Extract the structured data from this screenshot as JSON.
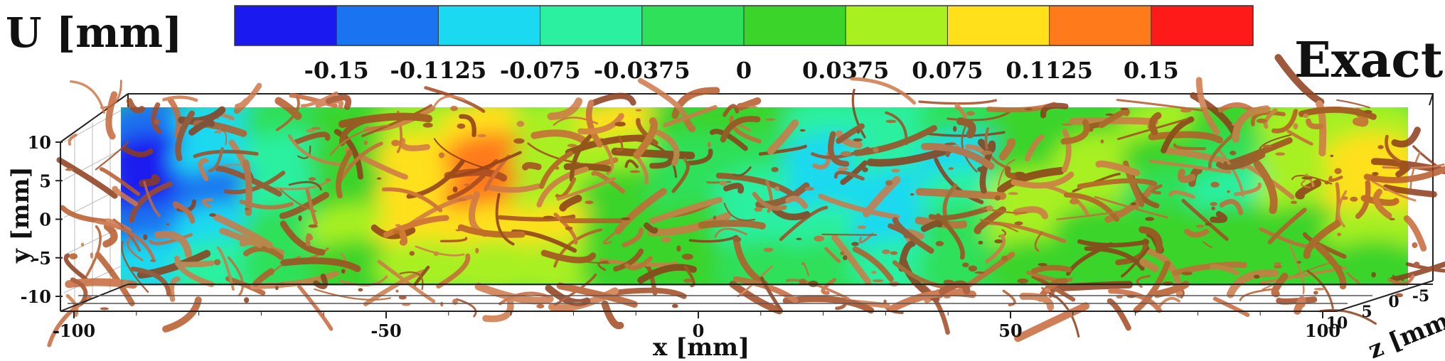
{
  "chart_data": {
    "type": "heatmap",
    "title": "Exact",
    "colorbar": {
      "label": "U [mm]",
      "ticks": [
        -0.15,
        -0.1125,
        -0.075,
        -0.0375,
        0,
        0.0375,
        0.075,
        0.1125,
        0.15
      ],
      "tick_labels": [
        "-0.15",
        "-0.1125",
        "-0.075",
        "-0.0375",
        "0",
        "0.0375",
        "0.075",
        "0.1125",
        "0.15"
      ],
      "range": [
        -0.1875,
        0.1875
      ],
      "levels": [
        "#1a1af0",
        "#1a73f0",
        "#1ad9f0",
        "#2bf0a0",
        "#2ee05a",
        "#3ad42a",
        "#a8f020",
        "#ffe01a",
        "#ff7a1a",
        "#ff1a1a"
      ]
    },
    "xaxis": {
      "label": "x [mm]",
      "ticks": [
        -100,
        -50,
        0,
        50,
        100
      ],
      "tick_labels": [
        "-100",
        "-50",
        "0",
        "50",
        "100"
      ],
      "range": [
        -100,
        100
      ]
    },
    "yaxis": {
      "label": "y [mm]",
      "ticks": [
        10,
        5,
        0,
        -5,
        -10
      ],
      "tick_labels": [
        "10",
        "5",
        "0",
        "-5",
        "-10"
      ],
      "range": [
        -12,
        12
      ]
    },
    "zaxis": {
      "label": "z [mm]",
      "ticks": [
        10,
        5,
        0,
        -5
      ],
      "tick_labels": [
        "10",
        "5",
        "0",
        "-5"
      ]
    },
    "field_samples": {
      "x": [
        -90,
        -80,
        -70,
        -60,
        -50,
        -40,
        -30,
        -20,
        -10,
        0,
        10,
        20,
        30,
        40,
        50,
        60,
        70,
        80,
        90
      ],
      "y": [
        10,
        5,
        0,
        -5,
        -10
      ],
      "u": [
        [
          -0.13,
          -0.09,
          -0.03,
          0.0,
          0.06,
          0.1,
          0.05,
          0.08,
          0.02,
          0.0,
          -0.04,
          -0.07,
          -0.02,
          0.01,
          0.03,
          0.05,
          0.02,
          0.04,
          0.06
        ],
        [
          -0.16,
          -0.1,
          -0.05,
          0.02,
          0.09,
          0.14,
          0.07,
          0.06,
          -0.01,
          -0.03,
          -0.09,
          -0.05,
          -0.08,
          0.02,
          0.04,
          0.01,
          -0.02,
          0.07,
          0.09
        ],
        [
          -0.17,
          -0.12,
          -0.06,
          0.03,
          0.11,
          0.13,
          0.04,
          0.02,
          -0.02,
          -0.05,
          -0.1,
          -0.09,
          -0.06,
          0.04,
          0.06,
          -0.01,
          -0.04,
          0.05,
          0.08
        ],
        [
          -0.15,
          -0.09,
          -0.03,
          0.05,
          0.09,
          0.08,
          0.09,
          0.03,
          0.0,
          -0.04,
          -0.07,
          -0.1,
          -0.03,
          0.05,
          0.02,
          0.03,
          0.01,
          0.03,
          0.05
        ],
        [
          -0.11,
          -0.06,
          -0.01,
          0.03,
          0.05,
          0.04,
          0.05,
          0.02,
          0.01,
          -0.01,
          -0.03,
          -0.05,
          -0.01,
          0.03,
          0.01,
          0.02,
          0.03,
          0.02,
          0.03
        ]
      ]
    },
    "grid": true
  }
}
